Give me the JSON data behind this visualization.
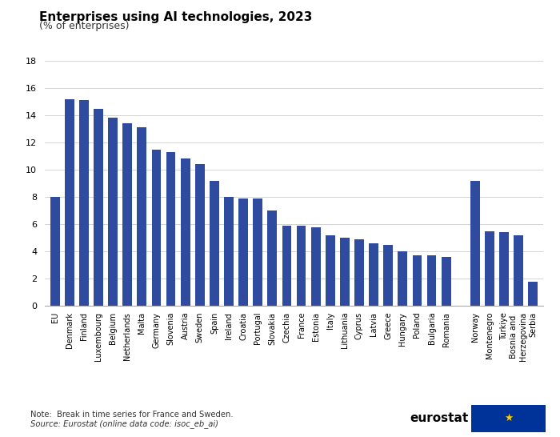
{
  "title": "Enterprises using AI technologies, 2023",
  "subtitle": "(% of enterprises)",
  "bar_color": "#2E4BA0",
  "categories": [
    "EU",
    "Denmark",
    "Finland",
    "Luxembourg",
    "Belgium",
    "Netherlands",
    "Malta",
    "Germany",
    "Slovenia",
    "Austria",
    "Sweden",
    "Spain",
    "Ireland",
    "Croatia",
    "Portugal",
    "Slovakia",
    "Czechia",
    "France",
    "Estonia",
    "Italy",
    "Lithuania",
    "Cyprus",
    "Latvia",
    "Greece",
    "Hungary",
    "Poland",
    "Bulgaria",
    "Romania",
    "Norway",
    "Montenegro",
    "Türkiye",
    "Bosnia and\nHerzegovina",
    "Serbia"
  ],
  "values": [
    8.0,
    15.2,
    15.1,
    14.5,
    13.8,
    13.4,
    13.1,
    11.5,
    11.3,
    10.8,
    10.4,
    9.2,
    8.0,
    7.9,
    7.9,
    7.0,
    5.9,
    5.9,
    5.8,
    5.2,
    5.0,
    4.9,
    4.6,
    4.5,
    4.0,
    3.7,
    3.7,
    3.6,
    9.2,
    5.5,
    5.4,
    5.2,
    1.8
  ],
  "x_positions": [
    0,
    1,
    2,
    3,
    4,
    5,
    6,
    7,
    8,
    9,
    10,
    11,
    12,
    13,
    14,
    15,
    16,
    17,
    18,
    19,
    20,
    21,
    22,
    23,
    24,
    25,
    26,
    27,
    29,
    30,
    31,
    32,
    33
  ],
  "ylim": [
    0,
    19
  ],
  "yticks": [
    0,
    2,
    4,
    6,
    8,
    10,
    12,
    14,
    16,
    18
  ],
  "note": "Note:  Break in time series for France and Sweden.",
  "source": "Source: Eurostat (online data code: isoc_eb_ai)",
  "background_color": "#ffffff",
  "grid_color": "#cccccc"
}
